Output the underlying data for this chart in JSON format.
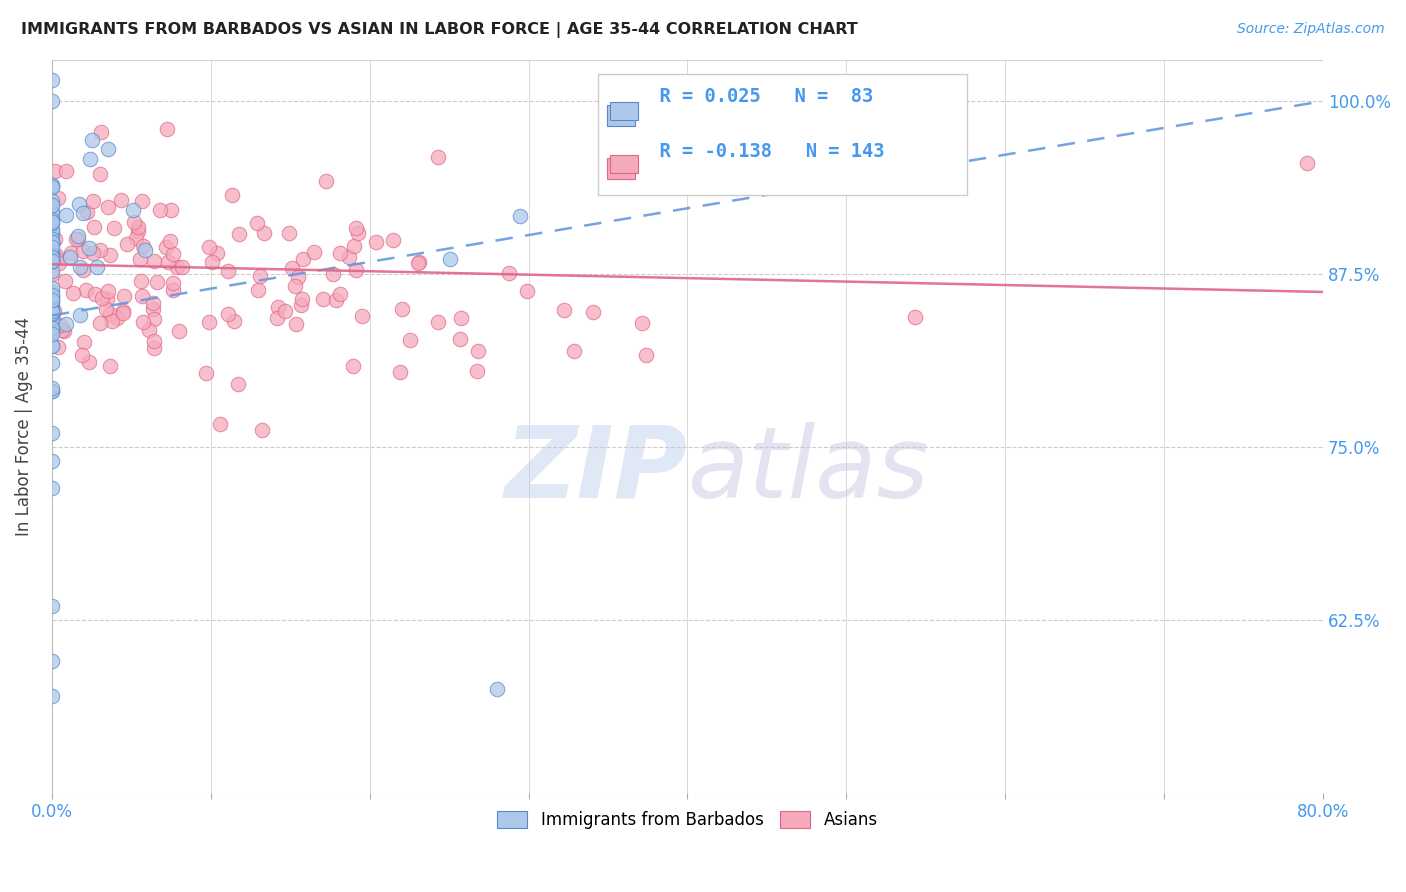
{
  "title": "IMMIGRANTS FROM BARBADOS VS ASIAN IN LABOR FORCE | AGE 35-44 CORRELATION CHART",
  "source": "Source: ZipAtlas.com",
  "ylabel": "In Labor Force | Age 35-44",
  "xlim": [
    0.0,
    0.8
  ],
  "ylim": [
    0.5,
    1.03
  ],
  "xtick_positions": [
    0.0,
    0.1,
    0.2,
    0.3,
    0.4,
    0.5,
    0.6,
    0.7,
    0.8
  ],
  "xticklabels": [
    "0.0%",
    "",
    "",
    "",
    "",
    "",
    "",
    "",
    "80.0%"
  ],
  "ytick_positions": [
    0.625,
    0.75,
    0.875,
    1.0
  ],
  "ytick_labels": [
    "62.5%",
    "75.0%",
    "87.5%",
    "100.0%"
  ],
  "barbados_color": "#adc8e8",
  "barbados_edge": "#5588cc",
  "asian_color": "#f5aabb",
  "asian_edge": "#e06688",
  "line_blue": "#6699dd",
  "line_pink": "#dd6688",
  "R_barbados": 0.025,
  "N_barbados": 83,
  "R_asian": -0.138,
  "N_asian": 143,
  "legend_label_1": "Immigrants from Barbados",
  "legend_label_2": "Asians",
  "background_color": "#ffffff",
  "grid_color": "#cccccc",
  "title_color": "#222222",
  "label_color": "#444444",
  "tick_color": "#4499ee",
  "watermark_zip_color": "#b8cce8",
  "watermark_atlas_color": "#c8c0e0"
}
